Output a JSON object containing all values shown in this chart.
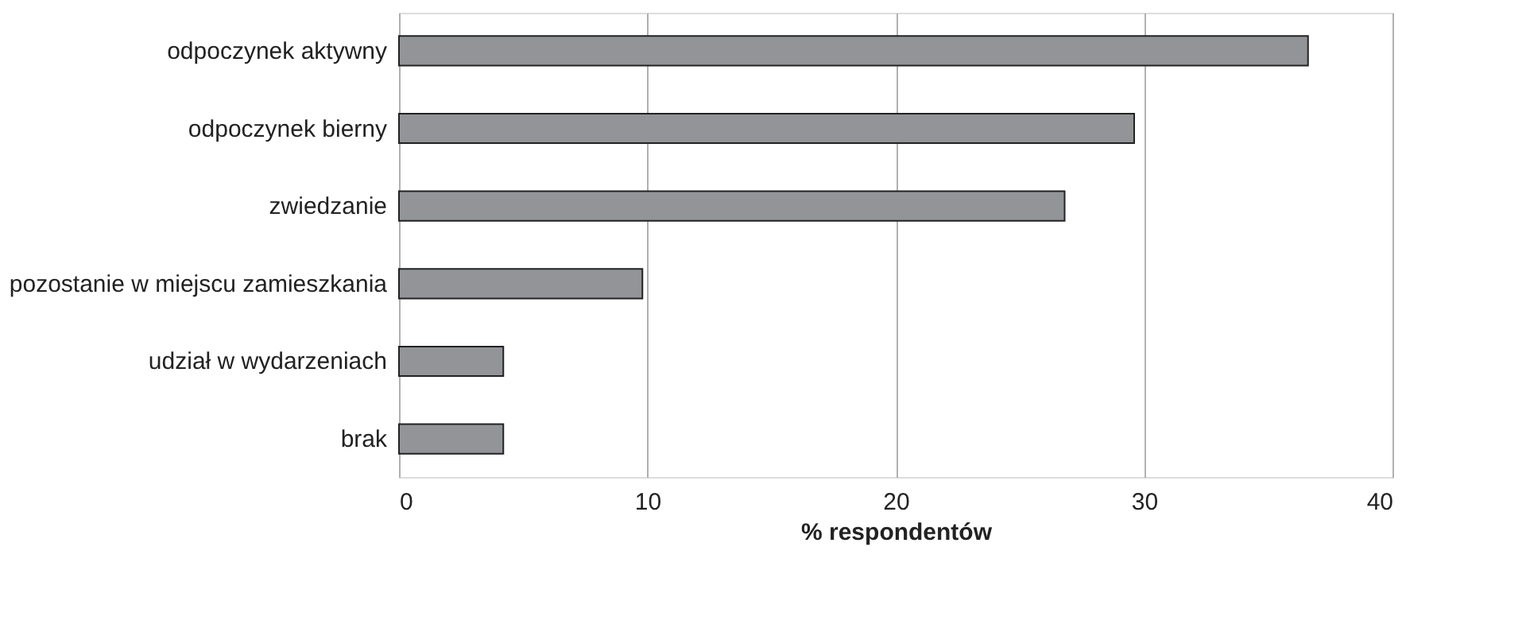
{
  "chart_data": {
    "type": "bar",
    "orientation": "horizontal",
    "xlabel": "% respondentów",
    "categories": [
      "odpoczynek aktywny",
      "odpoczynek bierny",
      "zwiedzanie",
      "pozostanie w miejscu zamieszkania",
      "udział w wydarzeniach",
      "brak"
    ],
    "values": [
      36.6,
      29.6,
      26.8,
      9.8,
      4.2,
      4.2
    ],
    "color": "#939498",
    "xlim": [
      0,
      40
    ],
    "xticks": [
      0,
      10,
      20,
      30,
      40
    ],
    "grid": "x"
  }
}
